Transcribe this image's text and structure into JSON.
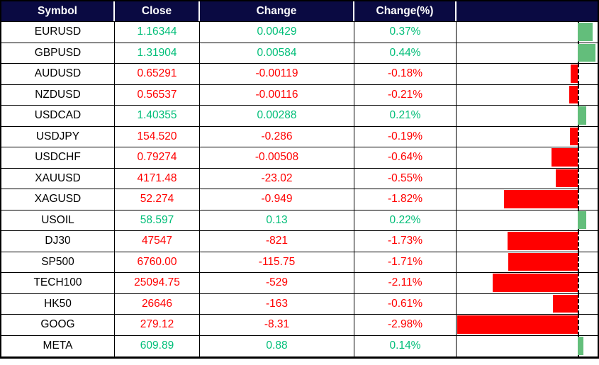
{
  "colors": {
    "header_bg": "#0A0A42",
    "header_text": "#FFFFFF",
    "positive_text": "#00BE78",
    "negative_text": "#FF0000",
    "positive_bar": "#63BE7B",
    "negative_bar": "#FF0000",
    "symbol_text": "#000000",
    "grid_line": "#000000"
  },
  "table": {
    "columns": [
      "Symbol",
      "Close",
      "Change",
      "Change(%)",
      ""
    ],
    "rows": [
      {
        "symbol": "EURUSD",
        "close": "1.16344",
        "change": "0.00429",
        "change_pct": "0.37%",
        "pct": 0.37,
        "direction": "up"
      },
      {
        "symbol": "GBPUSD",
        "close": "1.31904",
        "change": "0.00584",
        "change_pct": "0.44%",
        "pct": 0.44,
        "direction": "up"
      },
      {
        "symbol": "AUDUSD",
        "close": "0.65291",
        "change": "-0.00119",
        "change_pct": "-0.18%",
        "pct": -0.18,
        "direction": "down"
      },
      {
        "symbol": "NZDUSD",
        "close": "0.56537",
        "change": "-0.00116",
        "change_pct": "-0.21%",
        "pct": -0.21,
        "direction": "down"
      },
      {
        "symbol": "USDCAD",
        "close": "1.40355",
        "change": "0.00288",
        "change_pct": "0.21%",
        "pct": 0.21,
        "direction": "up"
      },
      {
        "symbol": "USDJPY",
        "close": "154.520",
        "change": "-0.286",
        "change_pct": "-0.19%",
        "pct": -0.19,
        "direction": "down"
      },
      {
        "symbol": "USDCHF",
        "close": "0.79274",
        "change": "-0.00508",
        "change_pct": "-0.64%",
        "pct": -0.64,
        "direction": "down"
      },
      {
        "symbol": "XAUUSD",
        "close": "4171.48",
        "change": "-23.02",
        "change_pct": "-0.55%",
        "pct": -0.55,
        "direction": "down"
      },
      {
        "symbol": "XAGUSD",
        "close": "52.274",
        "change": "-0.949",
        "change_pct": "-1.82%",
        "pct": -1.82,
        "direction": "down"
      },
      {
        "symbol": "USOIL",
        "close": "58.597",
        "change": "0.13",
        "change_pct": "0.22%",
        "pct": 0.22,
        "direction": "up"
      },
      {
        "symbol": "DJ30",
        "close": "47547",
        "change": "-821",
        "change_pct": "-1.73%",
        "pct": -1.73,
        "direction": "down"
      },
      {
        "symbol": "SP500",
        "close": "6760.00",
        "change": "-115.75",
        "change_pct": "-1.71%",
        "pct": -1.71,
        "direction": "down"
      },
      {
        "symbol": "TECH100",
        "close": "25094.75",
        "change": "-529",
        "change_pct": "-2.11%",
        "pct": -2.11,
        "direction": "down"
      },
      {
        "symbol": "HK50",
        "close": "26646",
        "change": "-163",
        "change_pct": "-0.61%",
        "pct": -0.61,
        "direction": "down"
      },
      {
        "symbol": "GOOG",
        "close": "279.12",
        "change": "-8.31",
        "change_pct": "-2.98%",
        "pct": -2.98,
        "direction": "down"
      },
      {
        "symbol": "META",
        "close": "609.89",
        "change": "0.88",
        "change_pct": "0.14%",
        "pct": 0.14,
        "direction": "up"
      }
    ]
  },
  "chart_data": {
    "type": "bar",
    "orientation": "horizontal",
    "title": "",
    "xlabel": "Change(%)",
    "ylabel": "Symbol",
    "categories": [
      "EURUSD",
      "GBPUSD",
      "AUDUSD",
      "NZDUSD",
      "USDCAD",
      "USDJPY",
      "USDCHF",
      "XAUUSD",
      "XAGUSD",
      "USOIL",
      "DJ30",
      "SP500",
      "TECH100",
      "HK50",
      "GOOG",
      "META"
    ],
    "values": [
      0.37,
      0.44,
      -0.18,
      -0.21,
      0.21,
      -0.19,
      -0.64,
      -0.55,
      -1.82,
      0.22,
      -1.73,
      -1.71,
      -2.11,
      -0.61,
      -2.98,
      0.14
    ],
    "xlim": [
      -2.98,
      0.44
    ],
    "zero_axis_style": "dashed",
    "grid": false,
    "legend": false,
    "positive_color": "#63BE7B",
    "negative_color": "#FF0000"
  }
}
